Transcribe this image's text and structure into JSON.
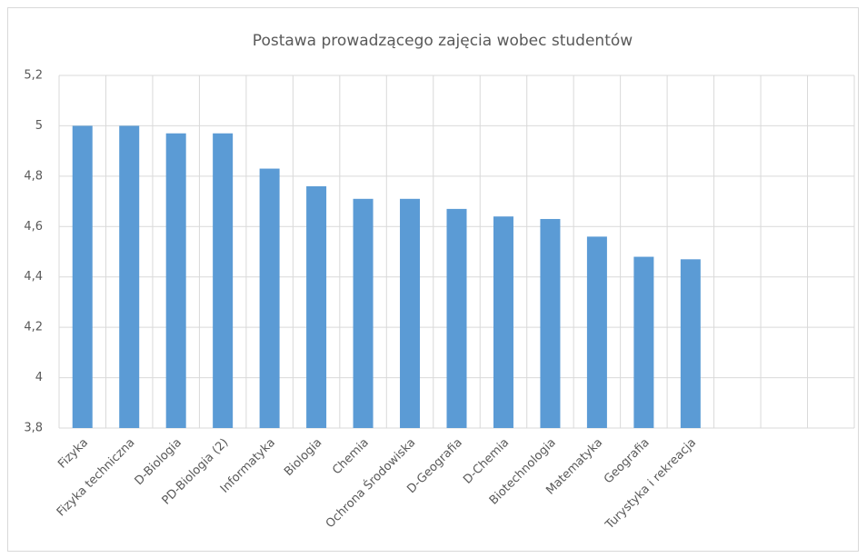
{
  "chart_data": {
    "type": "bar",
    "title": "Postawa prowadzącego zajęcia wobec studentów",
    "categories": [
      "Fizyka",
      "Fizyka techniczna",
      "D-Biologia",
      "PD-Biologia (2)",
      "Informatyka",
      "Biologia",
      "Chemia",
      "Ochrona Środowiska",
      "D-Geografia",
      "D-Chemia",
      "Biotechnologia",
      "Matematyka",
      "Geografia",
      "Turystyka i rekreacja",
      null,
      null,
      null
    ],
    "values": [
      5.0,
      5.0,
      4.97,
      4.97,
      4.83,
      4.76,
      4.71,
      4.71,
      4.67,
      4.64,
      4.63,
      4.56,
      4.48,
      4.47,
      null,
      null,
      null
    ],
    "color": "#5b9bd5",
    "ylim": [
      3.8,
      5.2
    ],
    "yticks": [
      {
        "value": 3.8,
        "label": "3,8"
      },
      4,
      {
        "value": 4.2,
        "label": "4,2"
      },
      {
        "value": 4.4,
        "label": "4,4"
      },
      {
        "value": 4.6,
        "label": "4,6"
      },
      {
        "value": 4.8,
        "label": "4,8"
      },
      5,
      {
        "value": 5.2,
        "label": "5,2"
      }
    ],
    "grid": true
  }
}
